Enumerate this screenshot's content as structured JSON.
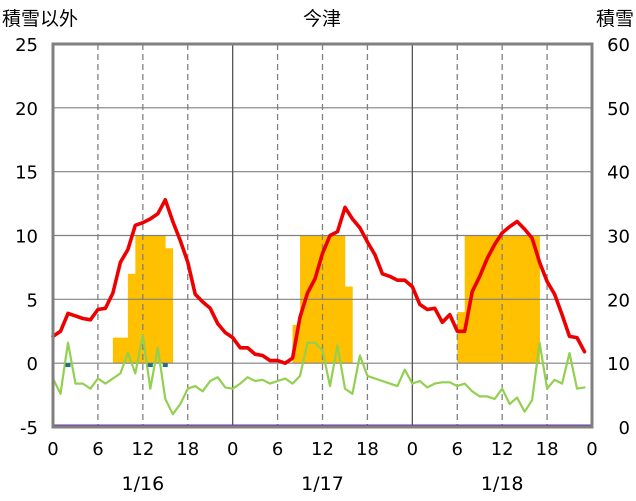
{
  "chart_data": {
    "type": "line",
    "title": "今津",
    "left_axis_label": "積雪以外",
    "right_axis_label": "積雪",
    "left_ylim": [
      -5,
      25
    ],
    "left_ticks": [
      "25",
      "20",
      "15",
      "10",
      "5",
      "0",
      "-5"
    ],
    "right_ylim": [
      0,
      60
    ],
    "right_ticks": [
      "60",
      "50",
      "40",
      "30",
      "20",
      "10",
      "0"
    ],
    "x_range_hours": [
      0,
      72
    ],
    "x_tick_labels": [
      "0",
      "6",
      "12",
      "18",
      "0",
      "6",
      "12",
      "18",
      "0",
      "6",
      "12",
      "18",
      "0"
    ],
    "date_labels": [
      "1/16",
      "1/17",
      "1/18"
    ],
    "colors": {
      "temperature": "#ee0000",
      "wind": "#92d050",
      "precipitation": "#ffc000",
      "sunshine": "#1f6f8b",
      "snow_depth": "#7030a0",
      "frame": "#808080",
      "grid": "#808080"
    },
    "series": [
      {
        "key": "temperature",
        "x": [
          0,
          1,
          2,
          3,
          4,
          5,
          6,
          7,
          8,
          9,
          10,
          11,
          12,
          13,
          14,
          15,
          16,
          17,
          18,
          19,
          20,
          21,
          22,
          23,
          24,
          25,
          26,
          27,
          28,
          29,
          30,
          31,
          32,
          33,
          34,
          35,
          36,
          37,
          38,
          39,
          40,
          41,
          42,
          43,
          44,
          45,
          46,
          47,
          48,
          49,
          50,
          51,
          52,
          53,
          54,
          55,
          56,
          57,
          58,
          59,
          60,
          61,
          62,
          63,
          64,
          65,
          66,
          67,
          68,
          69,
          70,
          71
        ],
        "values": [
          2.1,
          2.5,
          3.9,
          3.7,
          3.5,
          3.4,
          4.2,
          4.3,
          5.5,
          7.9,
          8.9,
          10.8,
          11.0,
          11.3,
          11.7,
          12.8,
          11.1,
          9.6,
          7.9,
          5.4,
          4.8,
          4.3,
          3.1,
          2.4,
          2.0,
          1.2,
          1.2,
          0.7,
          0.6,
          0.2,
          0.2,
          0,
          0.4,
          3.6,
          5.5,
          6.6,
          8.6,
          10.0,
          10.3,
          12.2,
          11.3,
          10.6,
          9.5,
          8.5,
          7.0,
          6.8,
          6.5,
          6.5,
          6.0,
          4.6,
          4.2,
          4.3,
          3.2,
          3.8,
          2.5,
          2.5,
          5.6,
          6.8,
          8.2,
          9.3,
          10.2,
          10.7,
          11.1,
          10.5,
          9.8,
          7.9,
          6.4,
          5.4,
          3.8,
          2.1,
          2.0,
          0.9
        ]
      },
      {
        "key": "wind",
        "x": [
          0,
          1,
          2,
          3,
          4,
          5,
          6,
          7,
          8,
          9,
          10,
          11,
          12,
          13,
          14,
          15,
          16,
          17,
          18,
          19,
          20,
          21,
          22,
          23,
          24,
          25,
          26,
          27,
          28,
          29,
          30,
          31,
          32,
          33,
          34,
          35,
          36,
          37,
          38,
          39,
          40,
          41,
          42,
          43,
          44,
          45,
          46,
          47,
          48,
          49,
          50,
          51,
          52,
          53,
          54,
          55,
          56,
          57,
          58,
          59,
          60,
          61,
          62,
          63,
          64,
          65,
          66,
          67,
          68,
          69,
          70,
          71
        ],
        "values": [
          -1.2,
          -2.4,
          1.6,
          -1.6,
          -1.6,
          -2.0,
          -1.2,
          -1.6,
          -1.2,
          -0.8,
          0.8,
          -0.8,
          2.2,
          -2.0,
          1.2,
          -2.8,
          -4.0,
          -3.2,
          -2.0,
          -1.8,
          -2.2,
          -1.4,
          -1.1,
          -1.9,
          -2.0,
          -1.6,
          -1.1,
          -1.4,
          -1.3,
          -1.6,
          -1.4,
          -1.2,
          -1.6,
          -1.0,
          1.6,
          1.6,
          1.0,
          -1.8,
          1.4,
          -2.0,
          -2.4,
          0.6,
          -1.0,
          -1.2,
          -1.4,
          -1.6,
          -1.8,
          -0.5,
          -1.6,
          -1.4,
          -1.9,
          -1.6,
          -1.5,
          -1.5,
          -1.8,
          -1.6,
          -2.2,
          -2.6,
          -2.6,
          -2.8,
          -2.0,
          -3.2,
          -2.7,
          -3.8,
          -2.9,
          1.6,
          -2.0,
          -1.3,
          -1.6,
          0.8,
          -2.0,
          -1.9
        ]
      }
    ],
    "precipitation_bars": {
      "x": [
        9,
        10,
        11,
        12,
        13,
        14,
        15,
        16,
        33,
        34,
        35,
        36,
        37,
        38,
        39,
        40,
        41,
        42,
        55,
        56,
        57,
        58,
        59,
        60,
        61,
        62,
        63,
        64,
        65,
        66
      ],
      "values": [
        2,
        2,
        7,
        10,
        10,
        10,
        10,
        9,
        3,
        10,
        10,
        10,
        10,
        10,
        10,
        6,
        0,
        0,
        4,
        10,
        10,
        10,
        10,
        10,
        10,
        10,
        10,
        10,
        10,
        0
      ]
    },
    "sunshine_marks": {
      "x": [
        2,
        13,
        15
      ],
      "values": [
        -0.3,
        -0.3,
        -0.3
      ]
    },
    "snow_depth": {
      "values": [
        0,
        0
      ]
    }
  }
}
